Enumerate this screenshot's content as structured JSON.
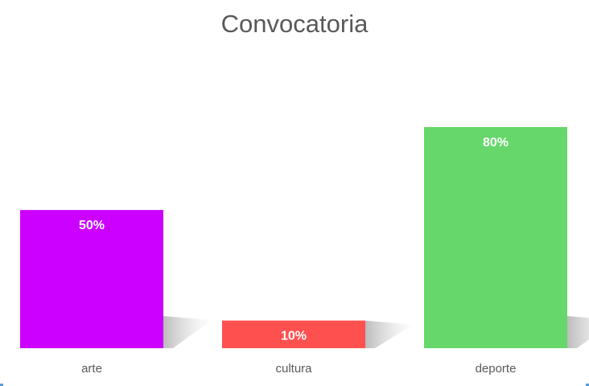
{
  "chart_data": {
    "type": "bar",
    "title": "Convocatoria",
    "categories": [
      "arte",
      "cultura",
      "deporte"
    ],
    "values": [
      50,
      10,
      80
    ],
    "value_labels": [
      "50%",
      "10%",
      "80%"
    ],
    "colors": [
      "#cc00ff",
      "#ff5050",
      "#66d76a"
    ],
    "ylim": [
      0,
      80
    ],
    "xlabel": "",
    "ylabel": "",
    "grid": false,
    "legend": "none"
  }
}
